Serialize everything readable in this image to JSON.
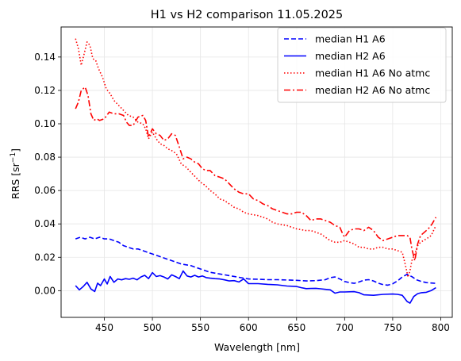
{
  "chart_data": {
    "type": "line",
    "title": "H1 vs H2 comparison 11.05.2025",
    "xlabel": "Wavelength [nm]",
    "ylabel": "RRS [sr",
    "ylabel_sup": "−1",
    "ylabel_end": "]",
    "xlim": [
      405,
      812
    ],
    "ylim": [
      -0.016,
      0.158
    ],
    "xticks": [
      450,
      500,
      550,
      600,
      650,
      700,
      750,
      800
    ],
    "yticks": [
      0.0,
      0.02,
      0.04,
      0.06,
      0.08,
      0.1,
      0.12,
      0.14
    ],
    "ytick_labels": [
      "0.00",
      "0.02",
      "0.04",
      "0.06",
      "0.08",
      "0.10",
      "0.12",
      "0.14"
    ],
    "grid": true,
    "legend_position": "top-right",
    "series": [
      {
        "name": "median H1 A6",
        "color": "#0000ff",
        "linestyle": "dashed",
        "points": [
          [
            420,
            0.031
          ],
          [
            425,
            0.032
          ],
          [
            430,
            0.031
          ],
          [
            435,
            0.032
          ],
          [
            440,
            0.031
          ],
          [
            445,
            0.032
          ],
          [
            450,
            0.031
          ],
          [
            455,
            0.031
          ],
          [
            460,
            0.03
          ],
          [
            465,
            0.029
          ],
          [
            470,
            0.027
          ],
          [
            475,
            0.026
          ],
          [
            480,
            0.025
          ],
          [
            485,
            0.025
          ],
          [
            490,
            0.024
          ],
          [
            495,
            0.023
          ],
          [
            500,
            0.022
          ],
          [
            510,
            0.02
          ],
          [
            520,
            0.018
          ],
          [
            530,
            0.016
          ],
          [
            540,
            0.015
          ],
          [
            550,
            0.013
          ],
          [
            560,
            0.011
          ],
          [
            570,
            0.01
          ],
          [
            580,
            0.009
          ],
          [
            590,
            0.008
          ],
          [
            600,
            0.007
          ],
          [
            610,
            0.0068
          ],
          [
            620,
            0.0066
          ],
          [
            630,
            0.0066
          ],
          [
            640,
            0.0064
          ],
          [
            650,
            0.0062
          ],
          [
            660,
            0.0058
          ],
          [
            670,
            0.006
          ],
          [
            680,
            0.0066
          ],
          [
            685,
            0.0078
          ],
          [
            690,
            0.0082
          ],
          [
            695,
            0.007
          ],
          [
            700,
            0.0055
          ],
          [
            705,
            0.0048
          ],
          [
            710,
            0.0044
          ],
          [
            715,
            0.0052
          ],
          [
            720,
            0.0063
          ],
          [
            725,
            0.0066
          ],
          [
            730,
            0.0058
          ],
          [
            735,
            0.0045
          ],
          [
            740,
            0.0036
          ],
          [
            745,
            0.0033
          ],
          [
            750,
            0.0041
          ],
          [
            755,
            0.0058
          ],
          [
            760,
            0.0082
          ],
          [
            765,
            0.0098
          ],
          [
            770,
            0.0084
          ],
          [
            775,
            0.0065
          ],
          [
            780,
            0.0055
          ],
          [
            785,
            0.0048
          ],
          [
            790,
            0.0046
          ],
          [
            795,
            0.0044
          ]
        ]
      },
      {
        "name": "median H2 A6",
        "color": "#0000ff",
        "linestyle": "solid",
        "points": [
          [
            420,
            0.003
          ],
          [
            424,
            0.0005
          ],
          [
            428,
            0.0025
          ],
          [
            432,
            0.005
          ],
          [
            436,
            0.001
          ],
          [
            440,
            -0.0005
          ],
          [
            443,
            0.0045
          ],
          [
            446,
            0.003
          ],
          [
            450,
            0.007
          ],
          [
            453,
            0.004
          ],
          [
            456,
            0.0085
          ],
          [
            460,
            0.005
          ],
          [
            464,
            0.007
          ],
          [
            468,
            0.0065
          ],
          [
            472,
            0.0072
          ],
          [
            476,
            0.0068
          ],
          [
            480,
            0.0075
          ],
          [
            484,
            0.0065
          ],
          [
            488,
            0.0082
          ],
          [
            492,
            0.0092
          ],
          [
            496,
            0.0072
          ],
          [
            500,
            0.0108
          ],
          [
            504,
            0.0085
          ],
          [
            508,
            0.009
          ],
          [
            512,
            0.0082
          ],
          [
            516,
            0.007
          ],
          [
            520,
            0.0095
          ],
          [
            524,
            0.0085
          ],
          [
            528,
            0.0072
          ],
          [
            532,
            0.0118
          ],
          [
            536,
            0.0088
          ],
          [
            540,
            0.0082
          ],
          [
            544,
            0.0092
          ],
          [
            548,
            0.0082
          ],
          [
            552,
            0.0088
          ],
          [
            556,
            0.0078
          ],
          [
            560,
            0.0075
          ],
          [
            565,
            0.0072
          ],
          [
            570,
            0.007
          ],
          [
            575,
            0.0065
          ],
          [
            580,
            0.0058
          ],
          [
            585,
            0.006
          ],
          [
            590,
            0.0052
          ],
          [
            595,
            0.007
          ],
          [
            600,
            0.0042
          ],
          [
            610,
            0.0042
          ],
          [
            620,
            0.0038
          ],
          [
            630,
            0.0035
          ],
          [
            640,
            0.0028
          ],
          [
            650,
            0.0025
          ],
          [
            655,
            0.0018
          ],
          [
            660,
            0.0012
          ],
          [
            665,
            0.0013
          ],
          [
            670,
            0.0014
          ],
          [
            675,
            0.0011
          ],
          [
            680,
            0.0008
          ],
          [
            685,
            0.0005
          ],
          [
            690,
            -0.0015
          ],
          [
            695,
            -0.0008
          ],
          [
            700,
            -0.0008
          ],
          [
            710,
            -0.0006
          ],
          [
            715,
            -0.0012
          ],
          [
            720,
            -0.0025
          ],
          [
            730,
            -0.0028
          ],
          [
            740,
            -0.0022
          ],
          [
            750,
            -0.002
          ],
          [
            755,
            -0.0022
          ],
          [
            760,
            -0.0028
          ],
          [
            765,
            -0.0065
          ],
          [
            768,
            -0.0075
          ],
          [
            772,
            -0.0035
          ],
          [
            776,
            -0.0018
          ],
          [
            780,
            -0.0012
          ],
          [
            785,
            -0.001
          ],
          [
            790,
            0.0
          ],
          [
            795,
            0.0018
          ]
        ]
      },
      {
        "name": "median H1 A6 No atmc",
        "color": "#ff0000",
        "linestyle": "dotted",
        "points": [
          [
            420,
            0.151
          ],
          [
            423,
            0.145
          ],
          [
            426,
            0.135
          ],
          [
            429,
            0.142
          ],
          [
            432,
            0.149
          ],
          [
            435,
            0.147
          ],
          [
            438,
            0.139
          ],
          [
            441,
            0.138
          ],
          [
            444,
            0.133
          ],
          [
            448,
            0.128
          ],
          [
            452,
            0.121
          ],
          [
            456,
            0.118
          ],
          [
            460,
            0.114
          ],
          [
            465,
            0.111
          ],
          [
            470,
            0.108
          ],
          [
            475,
            0.105
          ],
          [
            480,
            0.104
          ],
          [
            485,
            0.101
          ],
          [
            490,
            0.1
          ],
          [
            493,
            0.097
          ],
          [
            496,
            0.091
          ],
          [
            500,
            0.095
          ],
          [
            504,
            0.091
          ],
          [
            508,
            0.088
          ],
          [
            512,
            0.087
          ],
          [
            516,
            0.085
          ],
          [
            520,
            0.084
          ],
          [
            525,
            0.082
          ],
          [
            530,
            0.076
          ],
          [
            535,
            0.074
          ],
          [
            540,
            0.071
          ],
          [
            545,
            0.068
          ],
          [
            550,
            0.065
          ],
          [
            555,
            0.063
          ],
          [
            560,
            0.06
          ],
          [
            565,
            0.058
          ],
          [
            570,
            0.055
          ],
          [
            575,
            0.054
          ],
          [
            580,
            0.052
          ],
          [
            585,
            0.05
          ],
          [
            590,
            0.049
          ],
          [
            595,
            0.047
          ],
          [
            600,
            0.046
          ],
          [
            610,
            0.045
          ],
          [
            615,
            0.044
          ],
          [
            620,
            0.043
          ],
          [
            625,
            0.041
          ],
          [
            630,
            0.04
          ],
          [
            640,
            0.039
          ],
          [
            645,
            0.038
          ],
          [
            650,
            0.037
          ],
          [
            660,
            0.036
          ],
          [
            665,
            0.036
          ],
          [
            670,
            0.035
          ],
          [
            675,
            0.034
          ],
          [
            680,
            0.032
          ],
          [
            685,
            0.03
          ],
          [
            690,
            0.029
          ],
          [
            695,
            0.029
          ],
          [
            700,
            0.03
          ],
          [
            705,
            0.029
          ],
          [
            710,
            0.028
          ],
          [
            715,
            0.026
          ],
          [
            720,
            0.026
          ],
          [
            725,
            0.025
          ],
          [
            730,
            0.025
          ],
          [
            735,
            0.026
          ],
          [
            740,
            0.026
          ],
          [
            745,
            0.025
          ],
          [
            750,
            0.025
          ],
          [
            755,
            0.024
          ],
          [
            760,
            0.023
          ],
          [
            763,
            0.016
          ],
          [
            766,
            0.008
          ],
          [
            768,
            0.012
          ],
          [
            770,
            0.018
          ],
          [
            773,
            0.022
          ],
          [
            776,
            0.027
          ],
          [
            779,
            0.029
          ],
          [
            782,
            0.03
          ],
          [
            785,
            0.031
          ],
          [
            790,
            0.033
          ],
          [
            795,
            0.039
          ]
        ]
      },
      {
        "name": "median H2 A6 No atmc",
        "color": "#ff0000",
        "linestyle": "dashdot",
        "points": [
          [
            420,
            0.109
          ],
          [
            423,
            0.113
          ],
          [
            426,
            0.12
          ],
          [
            430,
            0.122
          ],
          [
            433,
            0.117
          ],
          [
            436,
            0.106
          ],
          [
            439,
            0.102
          ],
          [
            442,
            0.103
          ],
          [
            445,
            0.102
          ],
          [
            450,
            0.103
          ],
          [
            455,
            0.107
          ],
          [
            460,
            0.106
          ],
          [
            465,
            0.106
          ],
          [
            470,
            0.105
          ],
          [
            473,
            0.101
          ],
          [
            476,
            0.099
          ],
          [
            480,
            0.099
          ],
          [
            485,
            0.104
          ],
          [
            490,
            0.105
          ],
          [
            493,
            0.102
          ],
          [
            496,
            0.092
          ],
          [
            500,
            0.097
          ],
          [
            504,
            0.094
          ],
          [
            508,
            0.093
          ],
          [
            512,
            0.09
          ],
          [
            516,
            0.091
          ],
          [
            520,
            0.094
          ],
          [
            524,
            0.093
          ],
          [
            528,
            0.086
          ],
          [
            532,
            0.079
          ],
          [
            536,
            0.08
          ],
          [
            540,
            0.079
          ],
          [
            544,
            0.077
          ],
          [
            548,
            0.076
          ],
          [
            552,
            0.073
          ],
          [
            556,
            0.072
          ],
          [
            560,
            0.072
          ],
          [
            565,
            0.069
          ],
          [
            570,
            0.068
          ],
          [
            575,
            0.067
          ],
          [
            580,
            0.064
          ],
          [
            585,
            0.061
          ],
          [
            590,
            0.059
          ],
          [
            595,
            0.058
          ],
          [
            600,
            0.058
          ],
          [
            605,
            0.055
          ],
          [
            610,
            0.054
          ],
          [
            615,
            0.052
          ],
          [
            620,
            0.051
          ],
          [
            625,
            0.049
          ],
          [
            630,
            0.048
          ],
          [
            635,
            0.047
          ],
          [
            640,
            0.046
          ],
          [
            645,
            0.046
          ],
          [
            650,
            0.047
          ],
          [
            655,
            0.047
          ],
          [
            660,
            0.045
          ],
          [
            665,
            0.042
          ],
          [
            670,
            0.043
          ],
          [
            675,
            0.043
          ],
          [
            680,
            0.042
          ],
          [
            685,
            0.041
          ],
          [
            690,
            0.039
          ],
          [
            695,
            0.038
          ],
          [
            698,
            0.034
          ],
          [
            700,
            0.032
          ],
          [
            705,
            0.036
          ],
          [
            710,
            0.037
          ],
          [
            715,
            0.037
          ],
          [
            720,
            0.036
          ],
          [
            725,
            0.038
          ],
          [
            730,
            0.036
          ],
          [
            735,
            0.032
          ],
          [
            740,
            0.03
          ],
          [
            745,
            0.031
          ],
          [
            750,
            0.032
          ],
          [
            755,
            0.033
          ],
          [
            760,
            0.033
          ],
          [
            765,
            0.033
          ],
          [
            768,
            0.032
          ],
          [
            770,
            0.025
          ],
          [
            773,
            0.018
          ],
          [
            776,
            0.028
          ],
          [
            779,
            0.033
          ],
          [
            783,
            0.035
          ],
          [
            787,
            0.037
          ],
          [
            791,
            0.04
          ],
          [
            795,
            0.044
          ]
        ]
      }
    ]
  }
}
